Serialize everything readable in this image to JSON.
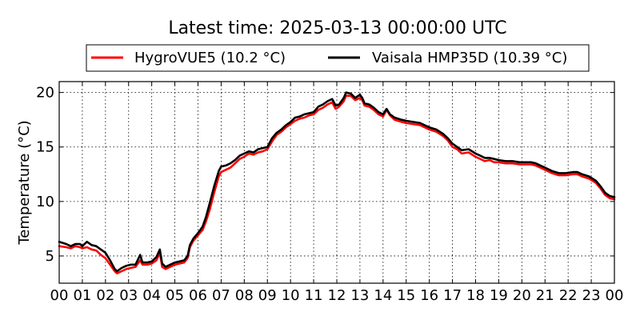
{
  "chart_data": {
    "type": "line",
    "title": "Latest time: 2025-03-13 00:00:00 UTC",
    "ylabel": "Temperature (°C)",
    "xlabel": "",
    "xlim": [
      0,
      24
    ],
    "ylim": [
      2.5,
      21
    ],
    "grid": true,
    "legend_position": "top",
    "x_ticks": [
      {
        "value": 0,
        "label": "00"
      },
      {
        "value": 1,
        "label": "01"
      },
      {
        "value": 2,
        "label": "02"
      },
      {
        "value": 3,
        "label": "03"
      },
      {
        "value": 4,
        "label": "04"
      },
      {
        "value": 5,
        "label": "05"
      },
      {
        "value": 6,
        "label": "06"
      },
      {
        "value": 7,
        "label": "07"
      },
      {
        "value": 8,
        "label": "08"
      },
      {
        "value": 9,
        "label": "09"
      },
      {
        "value": 10,
        "label": "10"
      },
      {
        "value": 11,
        "label": "11"
      },
      {
        "value": 12,
        "label": "12"
      },
      {
        "value": 13,
        "label": "13"
      },
      {
        "value": 14,
        "label": "14"
      },
      {
        "value": 15,
        "label": "15"
      },
      {
        "value": 16,
        "label": "16"
      },
      {
        "value": 17,
        "label": "17"
      },
      {
        "value": 18,
        "label": "18"
      },
      {
        "value": 19,
        "label": "19"
      },
      {
        "value": 20,
        "label": "20"
      },
      {
        "value": 21,
        "label": "21"
      },
      {
        "value": 22,
        "label": "22"
      },
      {
        "value": 23,
        "label": "23"
      },
      {
        "value": 24,
        "label": "00"
      }
    ],
    "y_ticks": [
      {
        "value": 5,
        "label": "5"
      },
      {
        "value": 10,
        "label": "10"
      },
      {
        "value": 15,
        "label": "15"
      },
      {
        "value": 20,
        "label": "20"
      }
    ],
    "series": [
      {
        "name": "HygroVUE5 (10.2 °C)",
        "color": "#ff0000",
        "points": [
          [
            0.0,
            5.9
          ],
          [
            0.3,
            5.8
          ],
          [
            0.5,
            5.7
          ],
          [
            0.7,
            5.9
          ],
          [
            0.9,
            5.8
          ],
          [
            1.0,
            5.7
          ],
          [
            1.2,
            5.8
          ],
          [
            1.4,
            5.6
          ],
          [
            1.6,
            5.5
          ],
          [
            1.8,
            5.1
          ],
          [
            2.0,
            4.8
          ],
          [
            2.2,
            4.2
          ],
          [
            2.4,
            3.6
          ],
          [
            2.5,
            3.4
          ],
          [
            2.7,
            3.6
          ],
          [
            2.9,
            3.8
          ],
          [
            3.1,
            3.9
          ],
          [
            3.3,
            4.0
          ],
          [
            3.5,
            4.6
          ],
          [
            3.6,
            4.2
          ],
          [
            3.8,
            4.2
          ],
          [
            4.0,
            4.3
          ],
          [
            4.2,
            4.6
          ],
          [
            4.35,
            5.3
          ],
          [
            4.45,
            4.0
          ],
          [
            4.6,
            3.8
          ],
          [
            4.8,
            4.0
          ],
          [
            5.0,
            4.2
          ],
          [
            5.2,
            4.3
          ],
          [
            5.4,
            4.4
          ],
          [
            5.55,
            4.8
          ],
          [
            5.65,
            5.8
          ],
          [
            5.8,
            6.4
          ],
          [
            6.0,
            6.9
          ],
          [
            6.2,
            7.4
          ],
          [
            6.35,
            8.2
          ],
          [
            6.5,
            9.2
          ],
          [
            6.7,
            10.8
          ],
          [
            6.9,
            12.3
          ],
          [
            7.0,
            12.7
          ],
          [
            7.2,
            12.9
          ],
          [
            7.4,
            13.1
          ],
          [
            7.6,
            13.5
          ],
          [
            7.8,
            13.9
          ],
          [
            8.0,
            14.1
          ],
          [
            8.2,
            14.4
          ],
          [
            8.4,
            14.3
          ],
          [
            8.6,
            14.5
          ],
          [
            8.8,
            14.6
          ],
          [
            9.0,
            14.8
          ],
          [
            9.2,
            15.5
          ],
          [
            9.4,
            16.1
          ],
          [
            9.6,
            16.4
          ],
          [
            9.8,
            16.8
          ],
          [
            10.0,
            17.1
          ],
          [
            10.2,
            17.4
          ],
          [
            10.4,
            17.6
          ],
          [
            10.6,
            17.7
          ],
          [
            10.8,
            17.9
          ],
          [
            11.0,
            18.0
          ],
          [
            11.2,
            18.4
          ],
          [
            11.4,
            18.6
          ],
          [
            11.6,
            18.9
          ],
          [
            11.8,
            19.1
          ],
          [
            11.95,
            18.5
          ],
          [
            12.1,
            18.7
          ],
          [
            12.3,
            19.2
          ],
          [
            12.4,
            19.7
          ],
          [
            12.6,
            19.7
          ],
          [
            12.8,
            19.3
          ],
          [
            13.0,
            19.5
          ],
          [
            13.1,
            19.3
          ],
          [
            13.2,
            18.8
          ],
          [
            13.4,
            18.7
          ],
          [
            13.6,
            18.4
          ],
          [
            13.8,
            18.0
          ],
          [
            14.0,
            17.8
          ],
          [
            14.15,
            18.4
          ],
          [
            14.3,
            17.9
          ],
          [
            14.5,
            17.5
          ],
          [
            14.8,
            17.3
          ],
          [
            15.0,
            17.2
          ],
          [
            15.3,
            17.1
          ],
          [
            15.6,
            17.0
          ],
          [
            15.8,
            16.8
          ],
          [
            16.0,
            16.6
          ],
          [
            16.3,
            16.4
          ],
          [
            16.6,
            16.0
          ],
          [
            16.8,
            15.6
          ],
          [
            17.0,
            15.0
          ],
          [
            17.2,
            14.8
          ],
          [
            17.4,
            14.4
          ],
          [
            17.7,
            14.5
          ],
          [
            18.0,
            14.1
          ],
          [
            18.2,
            13.9
          ],
          [
            18.4,
            13.7
          ],
          [
            18.6,
            13.8
          ],
          [
            18.8,
            13.6
          ],
          [
            19.0,
            13.6
          ],
          [
            19.3,
            13.5
          ],
          [
            19.6,
            13.5
          ],
          [
            19.9,
            13.4
          ],
          [
            20.1,
            13.4
          ],
          [
            20.4,
            13.4
          ],
          [
            20.6,
            13.3
          ],
          [
            20.8,
            13.1
          ],
          [
            21.0,
            12.9
          ],
          [
            21.3,
            12.6
          ],
          [
            21.6,
            12.4
          ],
          [
            21.9,
            12.4
          ],
          [
            22.2,
            12.5
          ],
          [
            22.4,
            12.5
          ],
          [
            22.6,
            12.3
          ],
          [
            22.9,
            12.1
          ],
          [
            23.2,
            11.7
          ],
          [
            23.4,
            11.2
          ],
          [
            23.6,
            10.6
          ],
          [
            23.8,
            10.3
          ],
          [
            24.0,
            10.2
          ]
        ]
      },
      {
        "name": "Vaisala HMP35D (10.39 °C)",
        "color": "#000000",
        "points": [
          [
            0.0,
            6.3
          ],
          [
            0.3,
            6.1
          ],
          [
            0.5,
            5.9
          ],
          [
            0.7,
            6.1
          ],
          [
            0.9,
            6.1
          ],
          [
            1.0,
            5.9
          ],
          [
            1.2,
            6.3
          ],
          [
            1.4,
            6.0
          ],
          [
            1.6,
            5.9
          ],
          [
            1.8,
            5.6
          ],
          [
            2.0,
            5.3
          ],
          [
            2.2,
            4.6
          ],
          [
            2.4,
            3.8
          ],
          [
            2.5,
            3.6
          ],
          [
            2.7,
            3.9
          ],
          [
            2.9,
            4.1
          ],
          [
            3.1,
            4.2
          ],
          [
            3.3,
            4.2
          ],
          [
            3.5,
            5.1
          ],
          [
            3.6,
            4.4
          ],
          [
            3.8,
            4.4
          ],
          [
            4.0,
            4.5
          ],
          [
            4.2,
            4.9
          ],
          [
            4.35,
            5.6
          ],
          [
            4.45,
            4.3
          ],
          [
            4.6,
            4.0
          ],
          [
            4.8,
            4.2
          ],
          [
            5.0,
            4.4
          ],
          [
            5.2,
            4.5
          ],
          [
            5.4,
            4.6
          ],
          [
            5.55,
            5.0
          ],
          [
            5.65,
            6.0
          ],
          [
            5.8,
            6.6
          ],
          [
            6.0,
            7.1
          ],
          [
            6.2,
            7.7
          ],
          [
            6.35,
            8.6
          ],
          [
            6.5,
            9.8
          ],
          [
            6.7,
            11.4
          ],
          [
            6.9,
            12.8
          ],
          [
            7.0,
            13.2
          ],
          [
            7.2,
            13.3
          ],
          [
            7.4,
            13.5
          ],
          [
            7.6,
            13.8
          ],
          [
            7.8,
            14.2
          ],
          [
            8.0,
            14.4
          ],
          [
            8.2,
            14.6
          ],
          [
            8.4,
            14.5
          ],
          [
            8.6,
            14.8
          ],
          [
            8.8,
            14.9
          ],
          [
            9.0,
            15.0
          ],
          [
            9.2,
            15.8
          ],
          [
            9.4,
            16.3
          ],
          [
            9.6,
            16.6
          ],
          [
            9.8,
            17.0
          ],
          [
            10.0,
            17.3
          ],
          [
            10.2,
            17.7
          ],
          [
            10.4,
            17.8
          ],
          [
            10.6,
            18.0
          ],
          [
            10.8,
            18.1
          ],
          [
            11.0,
            18.2
          ],
          [
            11.2,
            18.7
          ],
          [
            11.4,
            18.9
          ],
          [
            11.6,
            19.2
          ],
          [
            11.8,
            19.4
          ],
          [
            11.95,
            18.8
          ],
          [
            12.1,
            18.9
          ],
          [
            12.3,
            19.5
          ],
          [
            12.4,
            20.0
          ],
          [
            12.6,
            19.9
          ],
          [
            12.8,
            19.5
          ],
          [
            13.0,
            19.8
          ],
          [
            13.1,
            19.5
          ],
          [
            13.2,
            19.0
          ],
          [
            13.4,
            18.9
          ],
          [
            13.6,
            18.6
          ],
          [
            13.8,
            18.2
          ],
          [
            14.0,
            18.0
          ],
          [
            14.15,
            18.5
          ],
          [
            14.3,
            18.0
          ],
          [
            14.5,
            17.7
          ],
          [
            14.8,
            17.5
          ],
          [
            15.0,
            17.4
          ],
          [
            15.3,
            17.3
          ],
          [
            15.6,
            17.2
          ],
          [
            15.8,
            17.0
          ],
          [
            16.0,
            16.8
          ],
          [
            16.3,
            16.6
          ],
          [
            16.6,
            16.2
          ],
          [
            16.8,
            15.8
          ],
          [
            17.0,
            15.3
          ],
          [
            17.2,
            15.0
          ],
          [
            17.4,
            14.7
          ],
          [
            17.7,
            14.8
          ],
          [
            18.0,
            14.4
          ],
          [
            18.2,
            14.2
          ],
          [
            18.4,
            14.0
          ],
          [
            18.6,
            14.0
          ],
          [
            18.8,
            13.9
          ],
          [
            19.0,
            13.8
          ],
          [
            19.3,
            13.7
          ],
          [
            19.6,
            13.7
          ],
          [
            19.9,
            13.6
          ],
          [
            20.1,
            13.6
          ],
          [
            20.4,
            13.6
          ],
          [
            20.6,
            13.5
          ],
          [
            20.8,
            13.3
          ],
          [
            21.0,
            13.1
          ],
          [
            21.3,
            12.8
          ],
          [
            21.6,
            12.6
          ],
          [
            21.9,
            12.6
          ],
          [
            22.2,
            12.7
          ],
          [
            22.4,
            12.7
          ],
          [
            22.6,
            12.5
          ],
          [
            22.9,
            12.3
          ],
          [
            23.2,
            11.9
          ],
          [
            23.4,
            11.4
          ],
          [
            23.6,
            10.8
          ],
          [
            23.8,
            10.5
          ],
          [
            24.0,
            10.4
          ]
        ]
      }
    ]
  }
}
